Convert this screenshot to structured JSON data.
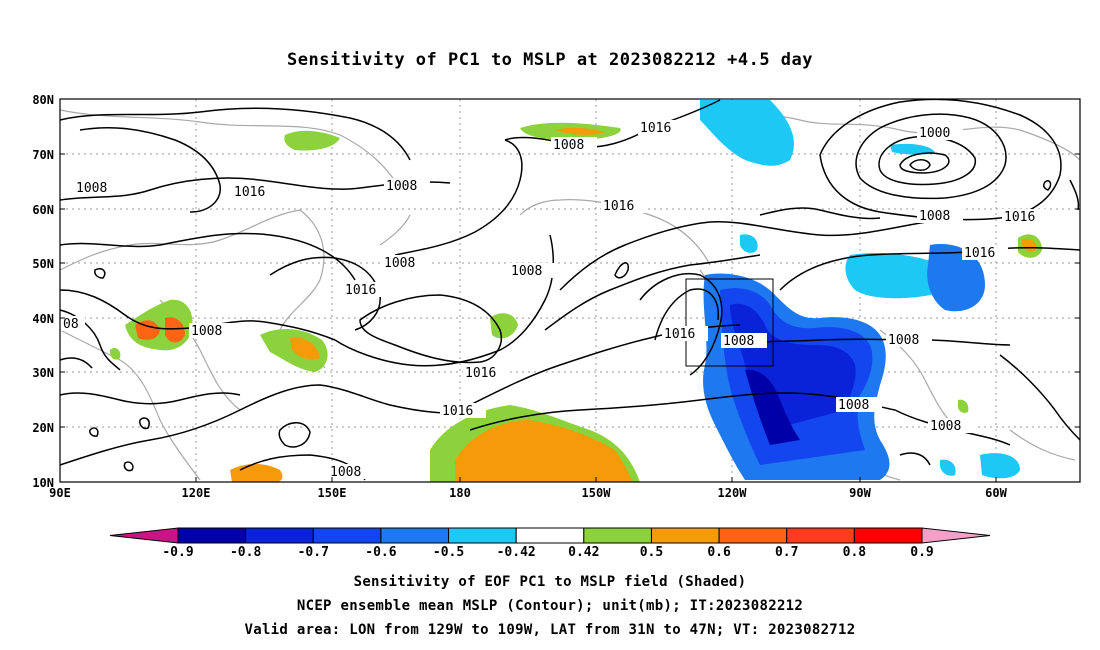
{
  "title": "Sensitivity of PC1 to MSLP at 2023082212 +4.5 day",
  "y_ticks": [
    "80N",
    "70N",
    "60N",
    "50N",
    "40N",
    "30N",
    "20N",
    "10N"
  ],
  "x_ticks": [
    "90E",
    "120E",
    "150E",
    "180",
    "150W",
    "120W",
    "90W",
    "60W"
  ],
  "contour_labels": [
    "1016",
    "1008",
    "1008",
    "1016",
    "1008",
    "1000",
    "1008",
    "1016",
    "1008",
    "1016",
    "1016",
    "1016",
    "1016",
    "1008",
    "1016",
    "1016",
    "1008",
    "1008",
    "1008",
    "1008",
    "1008",
    "08"
  ],
  "colorbar": {
    "labels": [
      "-0.9",
      "-0.8",
      "-0.7",
      "-0.6",
      "-0.5",
      "-0.42",
      "0.42",
      "0.5",
      "0.6",
      "0.7",
      "0.8",
      "0.9"
    ],
    "colors": [
      "#c71585",
      "#0000a8",
      "#0a23d8",
      "#1446f0",
      "#1e78f0",
      "#1ec8f5",
      "#ffffff",
      "#8cd23c",
      "#f59b0a",
      "#ff6414",
      "#ff3c1e",
      "#ff0000",
      "#f5a0c8"
    ]
  },
  "captions": [
    "Sensitivity of EOF PC1 to MSLP field (Shaded)",
    "NCEP ensemble mean MSLP (Contour); unit(mb); IT:2023082212",
    "Valid area: LON from 129W to 109W, LAT from 31N to 47N; VT: 2023082712"
  ]
}
